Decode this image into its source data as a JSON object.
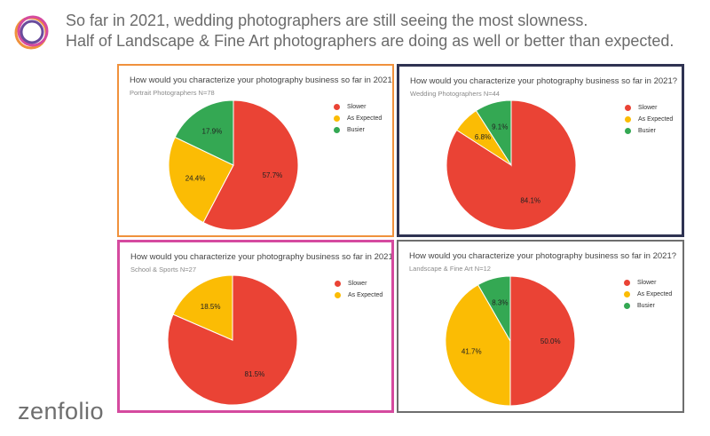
{
  "header": {
    "line1": "So far in 2021, wedding photographers are still seeing the most slowness.",
    "line2": "Half of Landscape & Fine Art photographers are doing as well or better than expected."
  },
  "logo": {
    "text": "zenfolio"
  },
  "colors": {
    "slower": "#ea4335",
    "as_expected": "#fbbc04",
    "busier": "#34a853",
    "label": "#222222"
  },
  "chart_data": [
    {
      "type": "pie",
      "title": "How would you characterize your photography business so far in 2021?",
      "subtitle": "Portrait Photographers N=78",
      "legend_position": "right",
      "slices": [
        {
          "label": "Slower",
          "value": 57.7,
          "display": "57.7%"
        },
        {
          "label": "As Expected",
          "value": 24.4,
          "display": "24.4%"
        },
        {
          "label": "Busier",
          "value": 17.9,
          "display": "17.9%"
        }
      ]
    },
    {
      "type": "pie",
      "title": "How would you characterize your photography business so far in 2021?",
      "subtitle": "Wedding Photographers N=44",
      "legend_position": "right",
      "slices": [
        {
          "label": "Slower",
          "value": 84.1,
          "display": "84.1%"
        },
        {
          "label": "As Expected",
          "value": 6.8,
          "display": "6.8%"
        },
        {
          "label": "Busier",
          "value": 9.1,
          "display": "9.1%"
        }
      ]
    },
    {
      "type": "pie",
      "title": "How would you characterize your photography business so far in 2021?",
      "subtitle": "School & Sports N=27",
      "legend_position": "right",
      "slices": [
        {
          "label": "Slower",
          "value": 81.5,
          "display": "81.5%"
        },
        {
          "label": "As Expected",
          "value": 18.5,
          "display": "18.5%"
        }
      ]
    },
    {
      "type": "pie",
      "title": "How would you characterize your photography business so far in 2021?",
      "subtitle": "Landscape & Fine Art N=12",
      "legend_position": "right",
      "slices": [
        {
          "label": "Slower",
          "value": 50.0,
          "display": "50.0%"
        },
        {
          "label": "As Expected",
          "value": 41.7,
          "display": "41.7%"
        },
        {
          "label": "Busier",
          "value": 8.3,
          "display": "8.3%"
        }
      ]
    }
  ]
}
